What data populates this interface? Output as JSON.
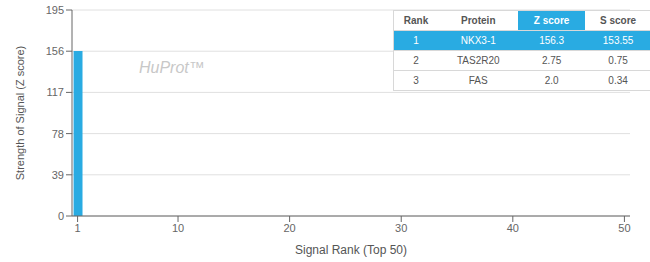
{
  "chart_data": {
    "type": "bar",
    "x": [
      1
    ],
    "values": [
      156.3
    ],
    "color": "#29abe2",
    "xlabel": "Signal Rank (Top 50)",
    "ylabel": "Strength of Signal (Z score)",
    "xlim": [
      0.5,
      50.5
    ],
    "xticks": [
      1,
      10,
      20,
      30,
      40,
      50
    ],
    "ylim": [
      0,
      195
    ],
    "yticks": [
      0,
      39,
      78,
      117,
      156,
      195
    ],
    "grid": true,
    "annotations": [
      "HuProt™"
    ],
    "table": {
      "header": [
        "Rank",
        "Protein",
        "Z score",
        "S score"
      ],
      "rows": [
        [
          "1",
          "NKX3-1",
          "156.3",
          "153.55"
        ],
        [
          "2",
          "TAS2R20",
          "2.75",
          "0.75"
        ],
        [
          "3",
          "FAS",
          "2.0",
          "0.34"
        ]
      ]
    }
  }
}
